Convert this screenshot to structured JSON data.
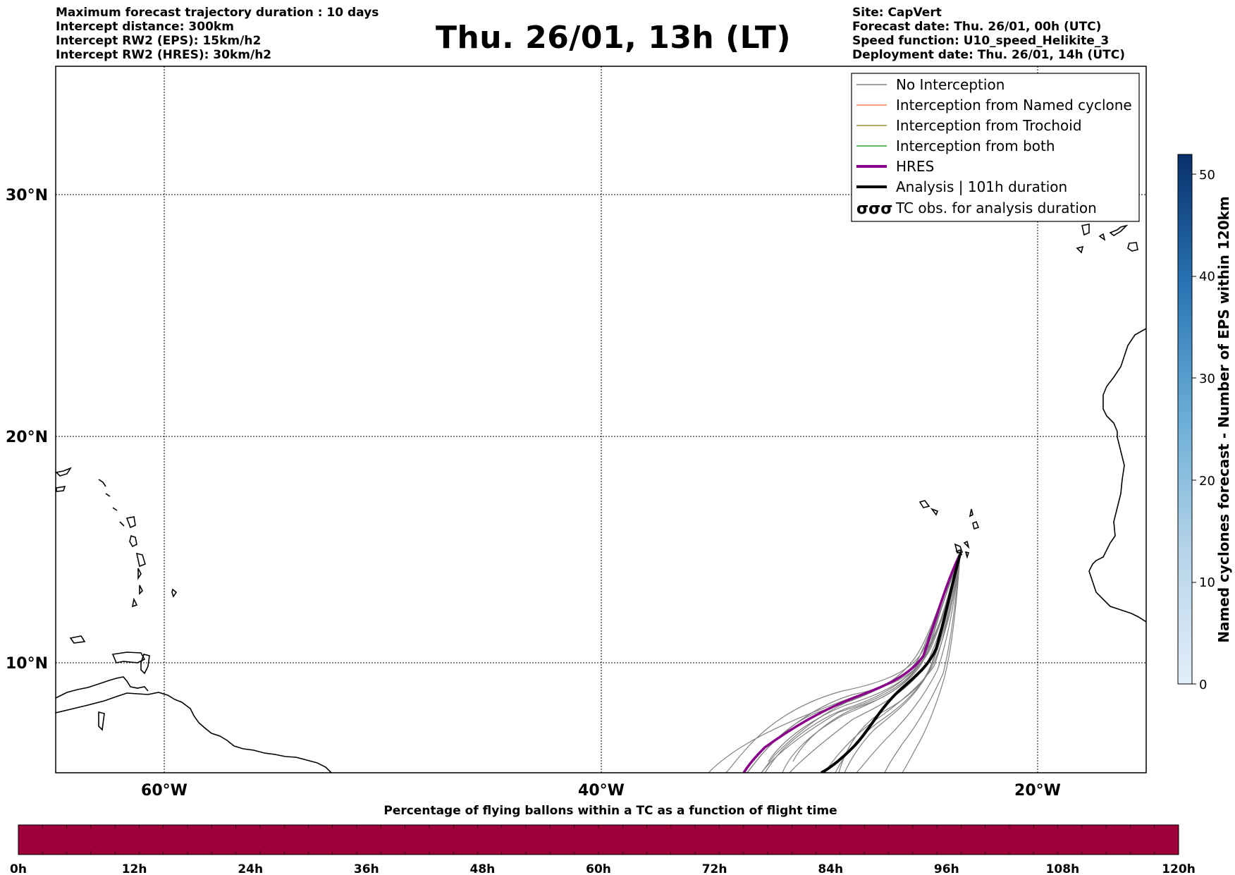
{
  "header_left": [
    "Maximum forecast trajectory duration : 10 days",
    "Intercept distance: 300km",
    "Intercept RW2 (EPS):  15km/h2",
    "Intercept RW2 (HRES): 30km/h2"
  ],
  "title": "Thu. 26/01, 13h (LT)",
  "header_right": [
    "Site: CapVert",
    "Forecast date: Thu. 26/01, 00h (UTC)",
    "Speed function: U10_speed_Helikite_3",
    "Deployment date: Thu. 26/01, 14h (UTC)"
  ],
  "map": {
    "lat_labels": [
      "30°N",
      "20°N",
      "10°N"
    ],
    "lon_labels": [
      "60°W",
      "40°W",
      "20°W"
    ],
    "lon_range": [
      -65,
      -15
    ],
    "lat_range": [
      5,
      35
    ],
    "grid": "dotted"
  },
  "legend": {
    "items": [
      {
        "label": "No Interception",
        "color": "#808080"
      },
      {
        "label": "Interception from Named cyclone",
        "color": "#ff7f50"
      },
      {
        "label": "Interception from Trochoid",
        "color": "#9a8a3a"
      },
      {
        "label": "Interception from both",
        "color": "#2ca02c"
      },
      {
        "label": "HRES",
        "color": "#8b008b"
      },
      {
        "label": "Analysis | 101h duration",
        "color": "#000000"
      },
      {
        "label": "TC obs. for analysis duration",
        "icon": "cyclone-symbol-icon",
        "glyph": "σσσ"
      }
    ]
  },
  "colorbar_right": {
    "title": "Named cyclones forecast - Number of EPS within 120km",
    "ticks": [
      "0",
      "10",
      "20",
      "30",
      "40",
      "50"
    ],
    "color_low": "#e3eef9",
    "color_high": "#08306b"
  },
  "colorbar_bottom": {
    "title": "Percentage of flying ballons within a TC as a function of flight time",
    "ticks": [
      "0h",
      "12h",
      "24h",
      "36h",
      "48h",
      "60h",
      "72h",
      "84h",
      "96h",
      "108h",
      "120h"
    ],
    "fill_color": "#9e003a"
  }
}
